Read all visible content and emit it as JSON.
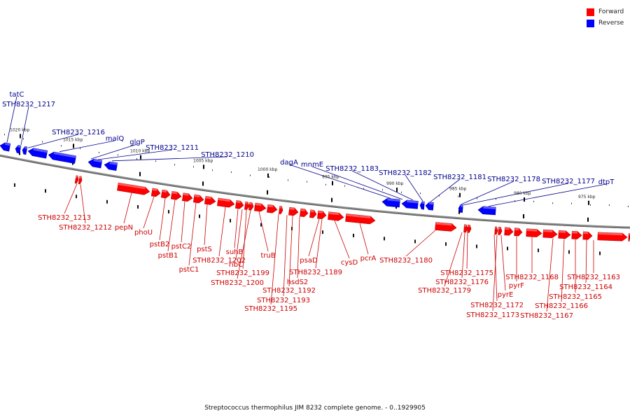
{
  "legend": {
    "forward": {
      "label": "Forward",
      "color": "#ff0000"
    },
    "reverse": {
      "label": "Reverse",
      "color": "#0000ff"
    }
  },
  "caption": "Streptococcus thermophilus JIM 8232 complete genome. - 0..1929905",
  "ruler": [
    "1020 kbp",
    "1015 kbp",
    "1010 kbp",
    "1005 kbp",
    "1000 kbp",
    "995 kbp",
    "990 kbp",
    "985 kbp",
    "980 kbp",
    "975 kbp"
  ],
  "genes_reverse": [
    "tatC",
    "STH8232_1217",
    "STH8232_1216",
    "malQ",
    "glgP",
    "STH8232_1211",
    "STH8232_1210",
    "dagA",
    "mnmE",
    "STH8232_1183",
    "STH8232_1182",
    "STH8232_1181",
    "STH8232_1178",
    "STH8232_1177",
    "dtpT"
  ],
  "genes_forward": [
    "STH8232_1213",
    "STH8232_1212",
    "pepN",
    "phoU",
    "pstB2",
    "pstB1",
    "pstC2",
    "pstC1",
    "pstS",
    "suhB",
    "STH8232_1202",
    "ribC",
    "STH8232_1199",
    "STH8232_1200",
    "truB",
    "hsdS2",
    "STH8232_1192",
    "STH8232_1193",
    "STH8232_1195",
    "psaD",
    "STH8232_1189",
    "cysD",
    "pcrA",
    "STH8232_1180",
    "STH8232_1175",
    "STH8232_1176",
    "STH8232_1179",
    "pyrE",
    "pyrF",
    "STH8232_1172",
    "STH8232_1173",
    "STH8232_1168",
    "STH8232_1166",
    "STH8232_1167",
    "STH8232_1163",
    "STH8232_1164",
    "STH8232_1165"
  ]
}
